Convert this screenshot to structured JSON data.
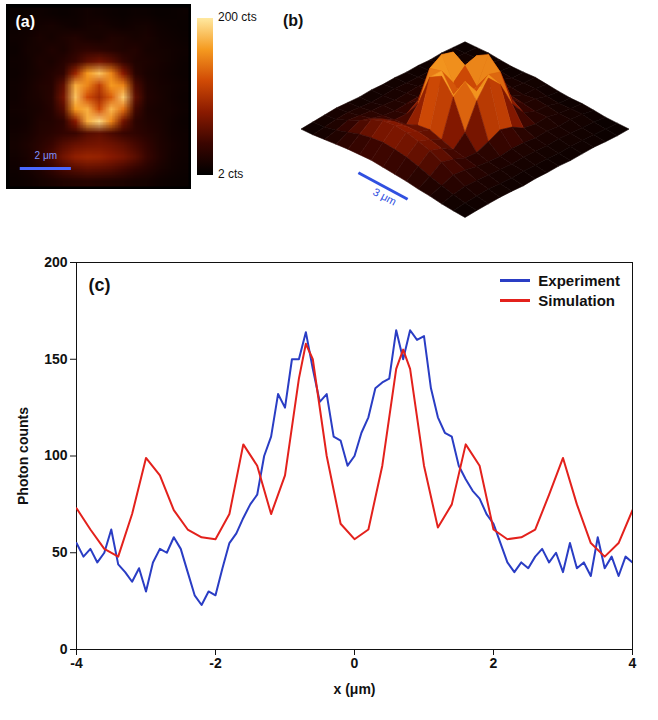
{
  "chart_data": [
    {
      "type": "heatmap",
      "title": "(a)",
      "tick_labels": false,
      "xlim": [
        -3.5,
        3.5
      ],
      "ylim": [
        -3.5,
        3.5
      ],
      "cells": [
        [
          8,
          10,
          12,
          10,
          9,
          11,
          14,
          12,
          10,
          9,
          11,
          10,
          8,
          9,
          10
        ],
        [
          10,
          12,
          15,
          18,
          14,
          12,
          16,
          18,
          14,
          12,
          15,
          16,
          12,
          10,
          9
        ],
        [
          12,
          14,
          20,
          16,
          22,
          25,
          20,
          18,
          24,
          22,
          18,
          20,
          14,
          12,
          10
        ],
        [
          10,
          16,
          18,
          24,
          20,
          30,
          35,
          32,
          28,
          24,
          26,
          18,
          16,
          14,
          12
        ],
        [
          12,
          14,
          22,
          20,
          28,
          40,
          60,
          70,
          58,
          38,
          24,
          22,
          18,
          14,
          11
        ],
        [
          11,
          15,
          20,
          26,
          35,
          90,
          160,
          180,
          150,
          80,
          30,
          20,
          16,
          13,
          10
        ],
        [
          13,
          16,
          24,
          28,
          60,
          170,
          150,
          110,
          160,
          150,
          50,
          24,
          18,
          15,
          12
        ],
        [
          12,
          18,
          22,
          30,
          70,
          180,
          120,
          95,
          130,
          185,
          60,
          26,
          20,
          14,
          11
        ],
        [
          14,
          16,
          20,
          28,
          55,
          160,
          170,
          120,
          175,
          140,
          45,
          22,
          18,
          16,
          12
        ],
        [
          12,
          15,
          24,
          26,
          34,
          80,
          170,
          190,
          150,
          70,
          32,
          24,
          20,
          14,
          10
        ],
        [
          14,
          18,
          26,
          30,
          36,
          40,
          55,
          60,
          50,
          40,
          34,
          28,
          22,
          15,
          12
        ],
        [
          16,
          22,
          30,
          40,
          55,
          65,
          70,
          72,
          68,
          60,
          48,
          36,
          24,
          18,
          13
        ],
        [
          14,
          20,
          34,
          50,
          70,
          85,
          90,
          88,
          80,
          72,
          58,
          40,
          26,
          16,
          12
        ],
        [
          12,
          16,
          24,
          36,
          48,
          55,
          60,
          58,
          54,
          46,
          36,
          28,
          20,
          14,
          11
        ],
        [
          10,
          12,
          16,
          20,
          24,
          26,
          28,
          26,
          24,
          22,
          18,
          16,
          12,
          10,
          9
        ]
      ],
      "colorbar": {
        "range": [
          2,
          200
        ],
        "ticks": [
          {
            "value": 200,
            "label": "200 cts"
          },
          {
            "value": 2,
            "label": "2 cts"
          }
        ]
      },
      "scale_bar": {
        "length": 2,
        "label": "2 μm"
      }
    },
    {
      "type": "surface",
      "title": "(b)",
      "tick_labels": false,
      "xlim": [
        -5,
        5
      ],
      "ylim": [
        -5,
        5
      ],
      "zlim": [
        2,
        200
      ],
      "cells": [
        [
          8,
          10,
          12,
          10,
          9,
          11,
          14,
          12,
          10,
          9,
          11,
          10,
          8,
          9,
          10
        ],
        [
          10,
          12,
          15,
          18,
          14,
          12,
          16,
          18,
          14,
          12,
          15,
          16,
          12,
          10,
          9
        ],
        [
          12,
          14,
          20,
          16,
          22,
          25,
          20,
          18,
          24,
          22,
          18,
          20,
          14,
          12,
          10
        ],
        [
          10,
          16,
          18,
          24,
          20,
          30,
          35,
          32,
          28,
          24,
          26,
          18,
          16,
          14,
          12
        ],
        [
          12,
          14,
          22,
          20,
          28,
          40,
          60,
          70,
          58,
          38,
          24,
          22,
          18,
          14,
          11
        ],
        [
          11,
          15,
          20,
          26,
          35,
          90,
          160,
          180,
          150,
          80,
          30,
          20,
          16,
          13,
          10
        ],
        [
          13,
          16,
          24,
          28,
          60,
          170,
          150,
          110,
          160,
          150,
          50,
          24,
          18,
          15,
          12
        ],
        [
          12,
          18,
          22,
          30,
          70,
          180,
          120,
          95,
          130,
          185,
          60,
          26,
          20,
          14,
          11
        ],
        [
          14,
          16,
          20,
          28,
          55,
          160,
          170,
          120,
          175,
          140,
          45,
          22,
          18,
          16,
          12
        ],
        [
          12,
          15,
          24,
          26,
          34,
          80,
          170,
          190,
          150,
          70,
          32,
          24,
          20,
          14,
          10
        ],
        [
          14,
          18,
          26,
          30,
          36,
          40,
          55,
          60,
          50,
          40,
          34,
          28,
          22,
          15,
          12
        ],
        [
          16,
          22,
          30,
          40,
          55,
          65,
          70,
          72,
          68,
          60,
          48,
          36,
          24,
          18,
          13
        ],
        [
          14,
          20,
          34,
          50,
          70,
          85,
          90,
          88,
          80,
          72,
          58,
          40,
          26,
          16,
          12
        ],
        [
          12,
          16,
          24,
          36,
          48,
          55,
          60,
          58,
          54,
          46,
          36,
          28,
          20,
          14,
          11
        ],
        [
          10,
          12,
          16,
          20,
          24,
          26,
          28,
          26,
          24,
          22,
          18,
          16,
          12,
          10,
          9
        ]
      ],
      "scale_bar": {
        "length": 3,
        "label": "3 μm"
      }
    },
    {
      "type": "line",
      "title": "(c)",
      "xlabel": "x (μm)",
      "ylabel": "Photon counts",
      "xlim": [
        -4,
        4
      ],
      "xticks": [
        -4,
        -2,
        0,
        2,
        4
      ],
      "ylim": [
        0,
        200
      ],
      "yticks": [
        0,
        50,
        100,
        150,
        200
      ],
      "legend": "upper right",
      "series": [
        {
          "name": "Experiment",
          "color": "#2a3dc4",
          "x": [
            -4.0,
            -3.9,
            -3.8,
            -3.7,
            -3.6,
            -3.5,
            -3.4,
            -3.3,
            -3.2,
            -3.1,
            -3.0,
            -2.9,
            -2.8,
            -2.7,
            -2.6,
            -2.5,
            -2.4,
            -2.3,
            -2.2,
            -2.1,
            -2.0,
            -1.9,
            -1.8,
            -1.7,
            -1.6,
            -1.5,
            -1.4,
            -1.3,
            -1.2,
            -1.1,
            -1.0,
            -0.9,
            -0.8,
            -0.7,
            -0.6,
            -0.5,
            -0.4,
            -0.3,
            -0.2,
            -0.1,
            0.0,
            0.1,
            0.2,
            0.3,
            0.4,
            0.5,
            0.6,
            0.7,
            0.8,
            0.9,
            1.0,
            1.1,
            1.2,
            1.3,
            1.4,
            1.5,
            1.6,
            1.7,
            1.8,
            1.9,
            2.0,
            2.1,
            2.2,
            2.3,
            2.4,
            2.5,
            2.6,
            2.7,
            2.8,
            2.9,
            3.0,
            3.1,
            3.2,
            3.3,
            3.4,
            3.5,
            3.6,
            3.7,
            3.8,
            3.9,
            4.0
          ],
          "values": [
            55,
            48,
            52,
            45,
            50,
            62,
            44,
            40,
            35,
            42,
            30,
            45,
            52,
            50,
            58,
            52,
            40,
            28,
            23,
            30,
            28,
            42,
            55,
            60,
            68,
            75,
            80,
            100,
            110,
            132,
            125,
            150,
            150,
            164,
            145,
            128,
            132,
            110,
            108,
            95,
            100,
            112,
            120,
            135,
            138,
            140,
            165,
            150,
            165,
            160,
            162,
            135,
            120,
            112,
            110,
            95,
            88,
            82,
            78,
            70,
            65,
            55,
            45,
            40,
            45,
            42,
            48,
            52,
            45,
            50,
            40,
            55,
            42,
            45,
            38,
            58,
            42,
            48,
            38,
            48,
            45
          ]
        },
        {
          "name": "Simulation",
          "color": "#e3211c",
          "x": [
            -4.0,
            -3.8,
            -3.6,
            -3.4,
            -3.2,
            -3.0,
            -2.8,
            -2.6,
            -2.4,
            -2.2,
            -2.0,
            -1.8,
            -1.6,
            -1.4,
            -1.2,
            -1.0,
            -0.8,
            -0.7,
            -0.6,
            -0.4,
            -0.2,
            0.0,
            0.2,
            0.4,
            0.6,
            0.7,
            0.8,
            1.0,
            1.2,
            1.4,
            1.6,
            1.8,
            2.0,
            2.2,
            2.4,
            2.6,
            2.8,
            3.0,
            3.2,
            3.4,
            3.6,
            3.8,
            4.0
          ],
          "values": [
            73,
            62,
            52,
            48,
            70,
            99,
            90,
            72,
            62,
            58,
            57,
            70,
            106,
            95,
            70,
            90,
            140,
            158,
            150,
            100,
            65,
            57,
            62,
            95,
            145,
            155,
            145,
            95,
            63,
            75,
            106,
            95,
            62,
            57,
            58,
            62,
            80,
            99,
            75,
            55,
            48,
            55,
            72
          ]
        }
      ]
    }
  ]
}
